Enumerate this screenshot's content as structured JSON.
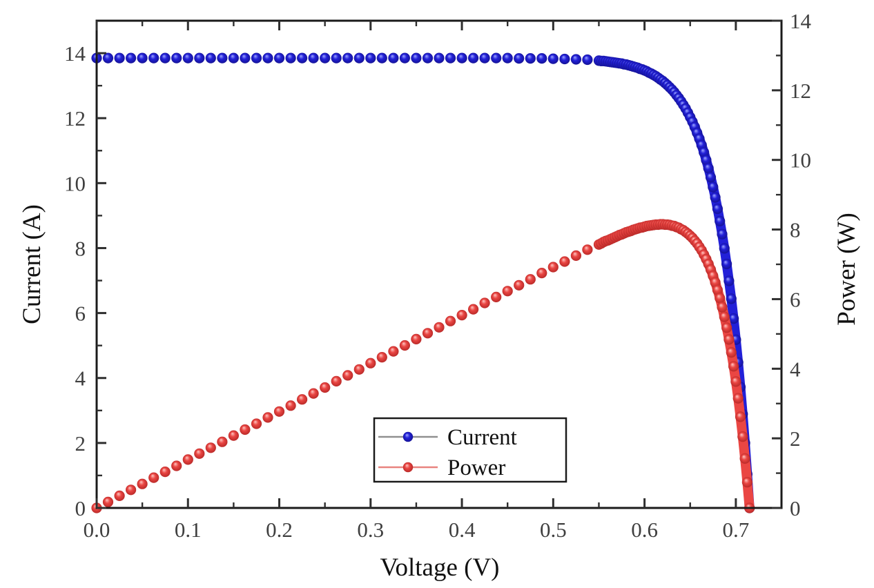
{
  "chart_data": {
    "type": "scatter",
    "title": "",
    "xlabel": "Voltage (V)",
    "ylabel_left": "Current (A)",
    "ylabel_right": "Power (W)",
    "xlim": [
      0,
      0.75
    ],
    "ylim_left": [
      0,
      15
    ],
    "ylim_right": [
      0,
      14
    ],
    "x_major_ticks": [
      0,
      0.1,
      0.2,
      0.3,
      0.4,
      0.5,
      0.6,
      0.7
    ],
    "x_tick_labels": [
      "0.0",
      "0.1",
      "0.2",
      "0.3",
      "0.4",
      "0.5",
      "0.6",
      "0.7"
    ],
    "x_minor_step": 0.05,
    "y_left_major_ticks": [
      0,
      2,
      4,
      6,
      8,
      10,
      12,
      14
    ],
    "y_left_tick_labels": [
      "0",
      "2",
      "4",
      "6",
      "8",
      "10",
      "12",
      "14"
    ],
    "y_left_minor_step": 1,
    "y_right_major_ticks": [
      0,
      2,
      4,
      6,
      8,
      10,
      12,
      14
    ],
    "y_right_tick_labels": [
      "0",
      "2",
      "4",
      "6",
      "8",
      "10",
      "12",
      "14"
    ],
    "y_right_minor_step": 1,
    "grid": false,
    "colors": {
      "background": "#ffffff",
      "frame": "#1a1a1a",
      "tick": "#2f2f2f",
      "tick_label": "#3f3f3f"
    },
    "legend": {
      "position": "inside-bottom-center",
      "entries": [
        {
          "label": "Current",
          "line_color": "#8f8f8f"
        },
        {
          "label": "Power",
          "line_color": "#e8837f"
        }
      ]
    },
    "dense_from_index": 45,
    "x": [
      0,
      0.0125,
      0.025,
      0.0375,
      0.05,
      0.0625,
      0.075,
      0.0875,
      0.1,
      0.1125,
      0.125,
      0.1375,
      0.15,
      0.1625,
      0.175,
      0.1875,
      0.2,
      0.2125,
      0.225,
      0.2375,
      0.25,
      0.2625,
      0.275,
      0.2875,
      0.3,
      0.3125,
      0.325,
      0.3375,
      0.35,
      0.3625,
      0.375,
      0.3875,
      0.4,
      0.4125,
      0.425,
      0.4375,
      0.45,
      0.4625,
      0.475,
      0.4875,
      0.5,
      0.5125,
      0.525,
      0.5375,
      0.55,
      0.5525,
      0.555,
      0.5575,
      0.56,
      0.5625,
      0.565,
      0.5675,
      0.57,
      0.5725,
      0.575,
      0.5775,
      0.58,
      0.5825,
      0.585,
      0.5875,
      0.59,
      0.5925,
      0.595,
      0.5975,
      0.6,
      0.6025,
      0.605,
      0.6075,
      0.61,
      0.6125,
      0.615,
      0.6175,
      0.62,
      0.6225,
      0.625,
      0.6275,
      0.63,
      0.6325,
      0.635,
      0.6375,
      0.64,
      0.6425,
      0.645,
      0.6475,
      0.65,
      0.6525,
      0.655,
      0.6575,
      0.66,
      0.6625,
      0.665,
      0.6675,
      0.67,
      0.6725,
      0.675,
      0.6775,
      0.68,
      0.6825,
      0.685,
      0.6875,
      0.69,
      0.6925,
      0.695,
      0.6975,
      0.7,
      0.7025,
      0.705,
      0.7075,
      0.71,
      0.7125,
      0.715
    ],
    "series": [
      {
        "name": "Current",
        "axis": "left",
        "marker": "sphere",
        "color": "#2220d8",
        "highlight": "#9fa8ff",
        "dark": "#12108a",
        "isc": 13.85,
        "voc": 0.715,
        "y": [
          13.85,
          13.85,
          13.85,
          13.85,
          13.85,
          13.85,
          13.85,
          13.85,
          13.85,
          13.85,
          13.85,
          13.85,
          13.85,
          13.85,
          13.85,
          13.85,
          13.85,
          13.85,
          13.85,
          13.85,
          13.85,
          13.85,
          13.85,
          13.85,
          13.85,
          13.85,
          13.85,
          13.85,
          13.85,
          13.85,
          13.85,
          13.85,
          13.85,
          13.85,
          13.85,
          13.85,
          13.85,
          13.84,
          13.84,
          13.84,
          13.83,
          13.82,
          13.81,
          13.8,
          13.77,
          13.76,
          13.76,
          13.75,
          13.74,
          13.73,
          13.72,
          13.71,
          13.7,
          13.69,
          13.68,
          13.66,
          13.65,
          13.63,
          13.61,
          13.59,
          13.57,
          13.55,
          13.52,
          13.5,
          13.47,
          13.44,
          13.4,
          13.37,
          13.33,
          13.29,
          13.24,
          13.19,
          13.14,
          13.08,
          13.02,
          12.95,
          12.88,
          12.8,
          12.71,
          12.62,
          12.52,
          12.41,
          12.3,
          12.17,
          12.03,
          11.89,
          11.73,
          11.55,
          11.37,
          11.17,
          10.95,
          10.71,
          10.46,
          10.18,
          9.88,
          9.56,
          9.21,
          8.83,
          8.43,
          7.99,
          7.51,
          6.99,
          6.44,
          5.83,
          5.18,
          4.48,
          3.72,
          2.89,
          2.0,
          1.04,
          0.0
        ]
      },
      {
        "name": "Power",
        "axis": "right",
        "marker": "sphere",
        "color": "#ea4643",
        "highlight": "#ffc9c4",
        "dark": "#b02423",
        "peak_power": 8.15,
        "peak_voltage": 0.62,
        "y": [
          0,
          0.17,
          0.35,
          0.52,
          0.69,
          0.87,
          1.04,
          1.21,
          1.39,
          1.56,
          1.73,
          1.9,
          2.08,
          2.25,
          2.42,
          2.6,
          2.77,
          2.94,
          3.12,
          3.29,
          3.46,
          3.64,
          3.81,
          3.98,
          4.16,
          4.33,
          4.5,
          4.67,
          4.85,
          5.02,
          5.19,
          5.37,
          5.54,
          5.71,
          5.89,
          6.06,
          6.23,
          6.4,
          6.57,
          6.75,
          6.92,
          7.08,
          7.25,
          7.42,
          7.57,
          7.6,
          7.64,
          7.67,
          7.69,
          7.72,
          7.75,
          7.78,
          7.81,
          7.84,
          7.86,
          7.89,
          7.92,
          7.94,
          7.96,
          7.99,
          8.01,
          8.03,
          8.05,
          8.06,
          8.08,
          8.1,
          8.11,
          8.12,
          8.13,
          8.14,
          8.14,
          8.15,
          8.15,
          8.14,
          8.14,
          8.13,
          8.11,
          8.1,
          8.07,
          8.05,
          8.01,
          7.98,
          7.93,
          7.88,
          7.82,
          7.76,
          7.68,
          7.6,
          7.5,
          7.4,
          7.28,
          7.15,
          7.01,
          6.85,
          6.67,
          6.48,
          6.26,
          6.03,
          5.77,
          5.49,
          5.18,
          4.84,
          4.47,
          4.07,
          3.63,
          3.15,
          2.62,
          2.05,
          1.42,
          0.74,
          0.0
        ]
      }
    ]
  }
}
